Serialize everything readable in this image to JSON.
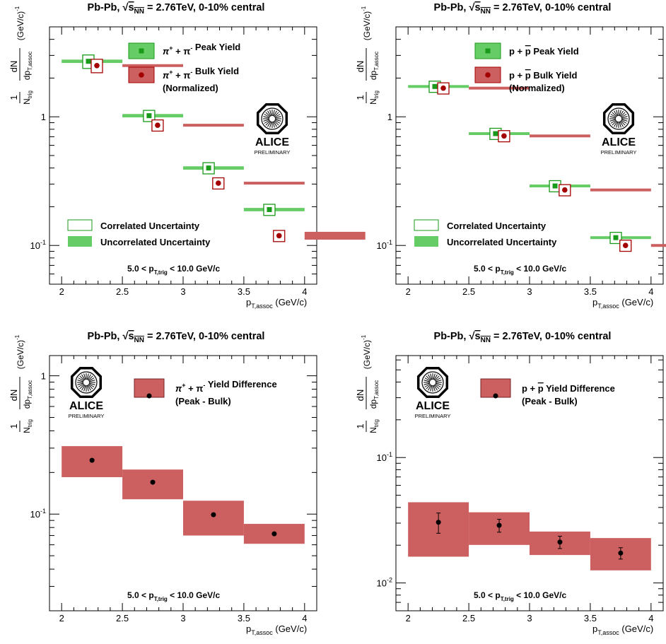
{
  "figure": {
    "title_parts": {
      "prefix": "Pb-Pb, ",
      "root": "s",
      "sub": "NN",
      "suffix": " = 2.76TeV, 0-10% central"
    },
    "logo": {
      "name": "ALICE",
      "tag": "PRELIMINARY"
    },
    "ylabel": {
      "prefix": "1",
      "num": "dN",
      "den_n": "N",
      "den_n_sub": "trig",
      "den_dp": "dp",
      "den_dp_sub": "T,assoc",
      "unit": "(GeV/c)",
      "unit_exp": "-1"
    },
    "xlabel": {
      "p": "p",
      "sub": "T,assoc",
      "unit": "(GeV/c)"
    },
    "kin": {
      "pre": "5.0 < p",
      "sub": "T,trig",
      "post": " < 10.0 GeV/c"
    },
    "corr_label": "Correlated Uncertainty",
    "uncorr_label": "Uncorrelated Uncertainty",
    "colors": {
      "peak": "#1a9a1a",
      "peak_fill": "#66cc66",
      "bulk": "#a50000",
      "bulk_fill": "#cc6060",
      "diff_fill": "#cc6060"
    }
  },
  "chart_data": [
    {
      "type": "scatter",
      "panel": "top-left",
      "yscale": "log",
      "xlim": [
        1.9,
        4.1
      ],
      "ylim": [
        0.05,
        5
      ],
      "xticks": [
        2,
        2.5,
        3,
        3.5,
        4
      ],
      "ytick_labels": [
        "10-1",
        "1"
      ],
      "legend": [
        {
          "sym": "π",
          "sup1": "+",
          "mid": " + π",
          "sup2": "-",
          "text": "Peak Yield"
        },
        {
          "sym": "π",
          "sup1": "+",
          "mid": " + π",
          "sup2": "-",
          "text": "Bulk Yield",
          "line2": "(Normalized)"
        }
      ],
      "series": [
        {
          "name": "Peak Yield",
          "x": [
            2.22,
            2.72,
            3.21,
            3.71
          ],
          "y": [
            2.7,
            1.02,
            0.4,
            0.19
          ],
          "corr": [
            0.12,
            0.1,
            0.1,
            0.1
          ],
          "uncorr": [
            0.03,
            0.03,
            0.03,
            0.03
          ]
        },
        {
          "name": "Bulk Yield (Normalized)",
          "x": [
            2.29,
            2.79,
            3.29,
            3.79
          ],
          "y": [
            2.5,
            0.86,
            0.305,
            0.119
          ],
          "corr": [
            0.12,
            0.1,
            0.1,
            0.1
          ],
          "uncorr": [
            0.02,
            0.02,
            0.02,
            0.07
          ]
        }
      ]
    },
    {
      "type": "scatter",
      "panel": "top-right",
      "yscale": "log",
      "xlim": [
        1.9,
        4.1
      ],
      "ylim": [
        0.05,
        5
      ],
      "xticks": [
        2,
        2.5,
        3,
        3.5,
        4
      ],
      "ytick_labels": [
        "10-1",
        "1"
      ],
      "legend": [
        {
          "sym": "p + ",
          "bar": "p",
          "text": "Peak Yield"
        },
        {
          "sym": "p + ",
          "bar": "p",
          "text": "Bulk Yield",
          "line2": "(Normalized)"
        }
      ],
      "series": [
        {
          "name": "Peak Yield",
          "x": [
            2.22,
            2.72,
            3.21,
            3.71
          ],
          "y": [
            1.72,
            0.74,
            0.29,
            0.115
          ],
          "corr": [
            0.1,
            0.1,
            0.1,
            0.1
          ],
          "uncorr": [
            0.02,
            0.02,
            0.02,
            0.02
          ]
        },
        {
          "name": "Bulk Yield (Normalized)",
          "x": [
            2.29,
            2.79,
            3.29,
            3.79
          ],
          "y": [
            1.67,
            0.71,
            0.27,
            0.1
          ],
          "corr": [
            0.1,
            0.1,
            0.1,
            0.1
          ],
          "uncorr": [
            0.02,
            0.02,
            0.02,
            0.02
          ]
        }
      ]
    },
    {
      "type": "scatter",
      "panel": "bottom-left",
      "yscale": "log",
      "xlim": [
        1.9,
        4.1
      ],
      "ylim": [
        0.02,
        1.4
      ],
      "xticks": [
        2,
        2.5,
        3,
        3.5,
        4
      ],
      "ytick_labels": [
        "10-1",
        "1"
      ],
      "legend": [
        {
          "sym": "π",
          "sup1": "+",
          "mid": " + π",
          "sup2": "-",
          "text": "Yield Difference",
          "line2": "(Peak - Bulk)"
        }
      ],
      "series": [
        {
          "name": "Yield Difference (Peak - Bulk)",
          "x": [
            2.25,
            2.75,
            3.25,
            3.75
          ],
          "y": [
            0.245,
            0.17,
            0.099,
            0.072
          ],
          "lo": [
            0.185,
            0.128,
            0.07,
            0.061
          ],
          "hi": [
            0.31,
            0.21,
            0.125,
            0.085
          ],
          "err": [
            0,
            0,
            0,
            0
          ]
        }
      ]
    },
    {
      "type": "scatter",
      "panel": "bottom-right",
      "yscale": "log",
      "xlim": [
        1.9,
        4.1
      ],
      "ylim": [
        0.006,
        0.65
      ],
      "xticks": [
        2,
        2.5,
        3,
        3.5,
        4
      ],
      "ytick_labels": [
        "10-2",
        "10-1"
      ],
      "legend": [
        {
          "sym": "p + ",
          "bar": "p",
          "text": "Yield Difference",
          "line2": "(Peak - Bulk)"
        }
      ],
      "series": [
        {
          "name": "Yield Difference (Peak - Bulk)",
          "x": [
            2.25,
            2.75,
            3.25,
            3.75
          ],
          "y": [
            0.0305,
            0.0288,
            0.0212,
            0.0173
          ],
          "lo": [
            0.0162,
            0.0201,
            0.0167,
            0.0126
          ],
          "hi": [
            0.044,
            0.0366,
            0.0257,
            0.0228
          ],
          "err": [
            0.0056,
            0.0034,
            0.0024,
            0.0018
          ]
        }
      ]
    }
  ]
}
